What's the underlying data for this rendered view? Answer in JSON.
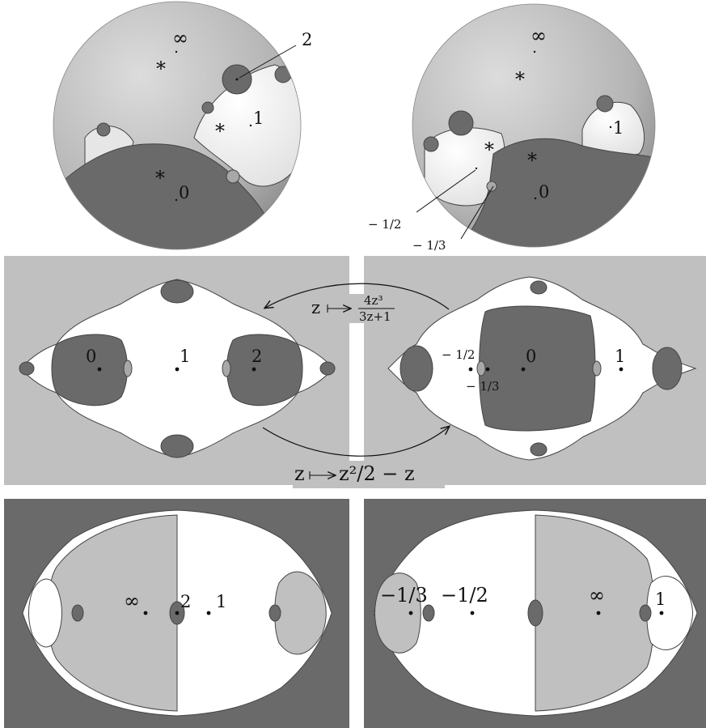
{
  "spheres": {
    "left": {
      "labels": {
        "infinity": "∞",
        "two": "2",
        "one": "1",
        "zero": "0",
        "star_top": "*",
        "star_mid": "*",
        "star_bottom": "*"
      }
    },
    "right": {
      "labels": {
        "infinity": "∞",
        "one": "1",
        "zero": "0",
        "neg_half": "− 1/2",
        "neg_third": "− 1/3",
        "star_top": "*",
        "star_left": "*",
        "star_right": "*"
      }
    }
  },
  "middle": {
    "left_panel": {
      "zero": "0",
      "one": "1",
      "two": "2"
    },
    "right_panel": {
      "neg_half": "− 1/2",
      "zero": "0",
      "one": "1",
      "neg_third": "− 1/3"
    },
    "map_top": {
      "z": "z",
      "numerator": "4z³",
      "denominator": "3z+1"
    },
    "map_bottom": {
      "z": "z",
      "expr": "z²/2 − z"
    }
  },
  "bottom": {
    "left_panel": {
      "infinity": "∞",
      "two": "2",
      "one": "1"
    },
    "right_panel": {
      "neg_third": "−1/3",
      "neg_half": "−1/2",
      "infinity": "∞",
      "one": "1"
    }
  },
  "colors": {
    "light_gray": "#c0c0c0",
    "dark_gray": "#6a6a6a",
    "white": "#ffffff",
    "medium_gray": "#a8a8a8"
  }
}
